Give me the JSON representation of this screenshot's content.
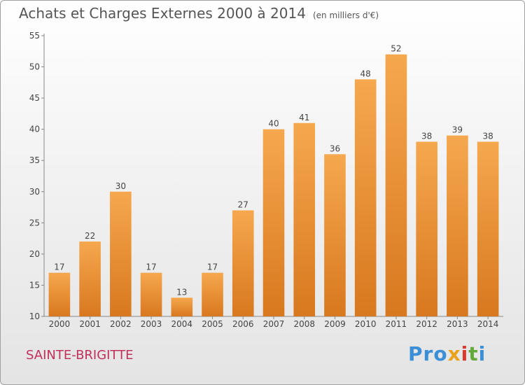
{
  "header": {
    "title": "Achats et Charges Externes 2000 à 2014",
    "subtitle": "(en milliers d'€)"
  },
  "footer": {
    "place": "SAINTE-BRIGITTE",
    "logo": [
      "Pro",
      "x",
      "i",
      "t",
      "i"
    ]
  },
  "colors": {
    "bar_top": "#f6a84e",
    "bar_bottom": "#d8781f",
    "title": "#555555",
    "place": "#c0305a"
  },
  "chart_data": {
    "type": "bar",
    "categories": [
      "2000",
      "2001",
      "2002",
      "2003",
      "2004",
      "2005",
      "2006",
      "2007",
      "2008",
      "2009",
      "2010",
      "2011",
      "2012",
      "2013",
      "2014"
    ],
    "values": [
      17,
      22,
      30,
      17,
      13,
      17,
      27,
      40,
      41,
      36,
      48,
      52,
      38,
      39,
      38
    ],
    "title": "Achats et Charges Externes 2000 à 2014",
    "ylim": [
      10,
      55
    ],
    "yticks": [
      10,
      15,
      20,
      25,
      30,
      35,
      40,
      45,
      50,
      55
    ],
    "grid": false,
    "data_labels": true
  }
}
